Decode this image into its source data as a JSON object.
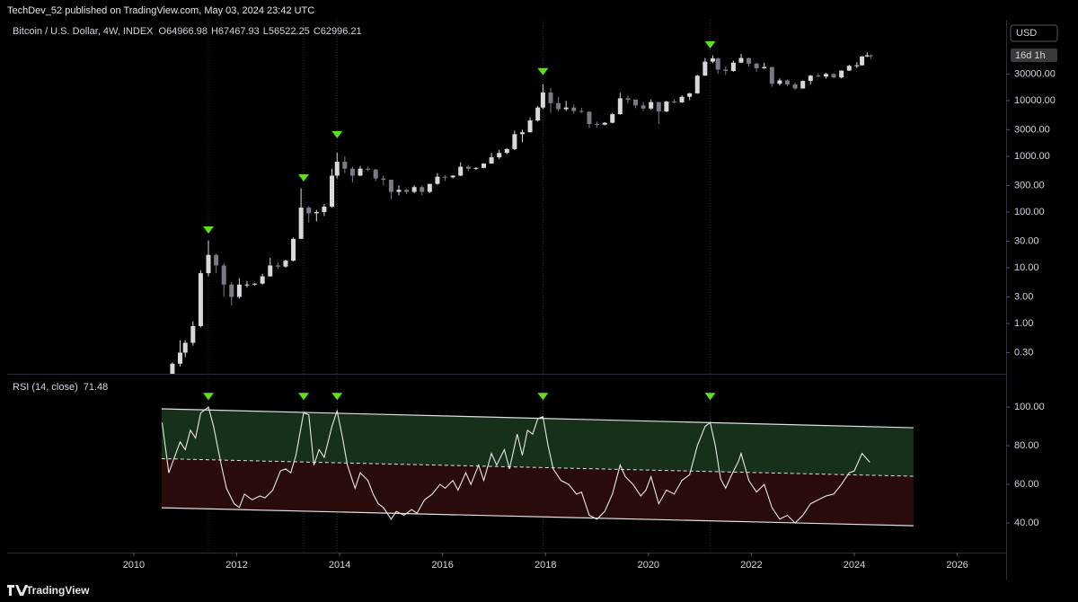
{
  "header": "TechDev_52 published on TradingView.com, May 03, 2024 23:42 UTC",
  "currency": "USD",
  "countdown": "16d 1h",
  "footer": "TradingView",
  "chart_data": [
    {
      "type": "candlestick",
      "title": "Bitcoin / U.S. Dollar, 4W, INDEX",
      "ohlc_keys": [
        "O",
        "H",
        "L",
        "C"
      ],
      "log": true,
      "up_color": "#d9d9d9",
      "down_color": "#787b86",
      "x": [
        2010.75,
        2010.9,
        2011.0,
        2011.15,
        2011.3,
        2011.45,
        2011.6,
        2011.75,
        2011.9,
        2012.05,
        2012.2,
        2012.35,
        2012.5,
        2012.65,
        2012.8,
        2012.95,
        2013.1,
        2013.25,
        2013.4,
        2013.55,
        2013.7,
        2013.85,
        2013.95,
        2014.1,
        2014.25,
        2014.4,
        2014.55,
        2014.7,
        2014.85,
        2015.0,
        2015.15,
        2015.3,
        2015.45,
        2015.6,
        2015.75,
        2015.9,
        2016.05,
        2016.2,
        2016.35,
        2016.5,
        2016.65,
        2016.8,
        2016.95,
        2017.1,
        2017.25,
        2017.4,
        2017.55,
        2017.7,
        2017.85,
        2017.95,
        2018.1,
        2018.25,
        2018.4,
        2018.55,
        2018.7,
        2018.85,
        2019.0,
        2019.15,
        2019.3,
        2019.45,
        2019.6,
        2019.75,
        2019.9,
        2020.05,
        2020.2,
        2020.35,
        2020.5,
        2020.65,
        2020.8,
        2020.95,
        2021.1,
        2021.25,
        2021.35,
        2021.5,
        2021.65,
        2021.8,
        2021.95,
        2022.1,
        2022.25,
        2022.4,
        2022.55,
        2022.7,
        2022.85,
        2023.0,
        2023.15,
        2023.3,
        2023.45,
        2023.6,
        2023.75,
        2023.9,
        2024.05,
        2024.15,
        2024.25,
        2024.32
      ],
      "open": [
        0.06,
        0.19,
        0.3,
        0.45,
        0.9,
        8,
        17,
        11,
        5,
        3,
        5,
        5,
        5.2,
        7,
        11,
        10.5,
        13.4,
        33,
        120,
        95,
        100,
        125,
        450,
        800,
        600,
        450,
        600,
        580,
        400,
        380,
        230,
        250,
        230,
        280,
        230,
        320,
        430,
        420,
        450,
        650,
        600,
        620,
        740,
        960,
        1150,
        1350,
        2500,
        2700,
        4400,
        7500,
        14000,
        9000,
        7000,
        7500,
        6500,
        6300,
        3800,
        3700,
        4000,
        5700,
        11000,
        10400,
        8200,
        7200,
        9400,
        6400,
        9600,
        9300,
        11700,
        13500,
        28000,
        50000,
        57000,
        36000,
        34000,
        48000,
        58000,
        46000,
        38000,
        40000,
        20000,
        23000,
        19500,
        16500,
        22500,
        28000,
        27000,
        30000,
        26000,
        34500,
        42000,
        43000,
        62000,
        64966.98
      ],
      "high": [
        0.2,
        0.5,
        0.5,
        1.1,
        9,
        31,
        18,
        12,
        5.5,
        6.5,
        5.8,
        5.3,
        7.8,
        15,
        12.5,
        14,
        35,
        266,
        130,
        110,
        140,
        600,
        1160,
        1000,
        650,
        670,
        650,
        590,
        450,
        380,
        300,
        260,
        300,
        300,
        320,
        500,
        460,
        460,
        780,
        700,
        640,
        750,
        1150,
        1300,
        1400,
        2900,
        3000,
        5000,
        8000,
        19800,
        17000,
        11700,
        9900,
        8500,
        7400,
        6500,
        4200,
        4100,
        6000,
        13800,
        12300,
        10600,
        9400,
        10500,
        9500,
        9900,
        10500,
        12400,
        13800,
        29000,
        58000,
        64800,
        59000,
        41000,
        52000,
        69000,
        59000,
        48000,
        48000,
        40000,
        25000,
        24000,
        21000,
        23000,
        28800,
        31000,
        31500,
        31000,
        35000,
        44000,
        49000,
        63000,
        73800,
        67467.93
      ],
      "low": [
        0.05,
        0.17,
        0.25,
        0.4,
        0.85,
        7,
        8,
        3,
        2.1,
        2.8,
        4.4,
        4.8,
        5,
        7,
        9.5,
        10,
        13,
        33,
        65,
        68,
        85,
        120,
        400,
        500,
        340,
        440,
        540,
        360,
        300,
        170,
        200,
        210,
        220,
        200,
        220,
        310,
        360,
        400,
        440,
        540,
        570,
        610,
        740,
        900,
        1100,
        1300,
        1800,
        2700,
        4200,
        7000,
        6000,
        6500,
        6500,
        5800,
        6000,
        3200,
        3300,
        3600,
        3900,
        5600,
        9000,
        7300,
        6500,
        6900,
        3800,
        6200,
        8900,
        9100,
        10200,
        13200,
        28000,
        47000,
        30000,
        29000,
        33000,
        47000,
        41000,
        33000,
        37000,
        17600,
        18800,
        18000,
        15500,
        16400,
        19600,
        26000,
        24800,
        25000,
        25000,
        34000,
        38500,
        42500,
        60000,
        56522.25
      ],
      "close": [
        0.19,
        0.3,
        0.45,
        0.9,
        8,
        17,
        11,
        5,
        3,
        5,
        5,
        5.2,
        7,
        11,
        10.5,
        13.4,
        33,
        120,
        95,
        100,
        125,
        450,
        800,
        600,
        450,
        600,
        580,
        400,
        380,
        230,
        250,
        230,
        280,
        230,
        320,
        430,
        420,
        450,
        650,
        600,
        620,
        740,
        960,
        1150,
        1350,
        2500,
        2700,
        4400,
        7500,
        14000,
        9000,
        7000,
        7500,
        6500,
        6300,
        3800,
        3700,
        4000,
        5700,
        11000,
        10400,
        8200,
        7200,
        9400,
        6400,
        9600,
        9300,
        11700,
        13500,
        28000,
        50000,
        57000,
        36000,
        34000,
        48000,
        58000,
        46000,
        38000,
        40000,
        20000,
        23000,
        19500,
        16500,
        22500,
        28000,
        27000,
        30000,
        26000,
        34500,
        42000,
        43000,
        62000,
        65000,
        62996.21
      ],
      "markers": {
        "color": "#5ee01f",
        "x": [
          2011.45,
          2013.3,
          2013.95,
          2017.95,
          2021.2
        ],
        "y": [
          47.6,
          409,
          2450,
          33000,
          100000
        ]
      },
      "xlim": [
        2007.54,
        2026.95
      ],
      "ylim": [
        0.13,
        282000
      ],
      "yticks": [
        {
          "value": 30000,
          "label": "30000.00"
        },
        {
          "value": 10000,
          "label": "10000.00"
        },
        {
          "value": 3000,
          "label": "3000.00"
        },
        {
          "value": 1000,
          "label": "1000.00"
        },
        {
          "value": 300,
          "label": "300.00"
        },
        {
          "value": 100,
          "label": "100.00"
        },
        {
          "value": 30,
          "label": "30.00"
        },
        {
          "value": 10,
          "label": "10.00"
        },
        {
          "value": 3,
          "label": "3.00"
        },
        {
          "value": 1,
          "label": "1.00"
        },
        {
          "value": 0.3,
          "label": "0.30"
        }
      ]
    },
    {
      "type": "line",
      "x": [
        2010.55,
        2010.68,
        2010.9,
        2011.0,
        2011.1,
        2011.2,
        2011.3,
        2011.45,
        2011.55,
        2011.7,
        2011.8,
        2011.95,
        2012.05,
        2012.15,
        2012.3,
        2012.45,
        2012.55,
        2012.7,
        2012.85,
        2012.95,
        2013.05,
        2013.15,
        2013.3,
        2013.4,
        2013.5,
        2013.6,
        2013.7,
        2013.85,
        2013.95,
        2014.05,
        2014.15,
        2014.3,
        2014.4,
        2014.55,
        2014.65,
        2014.75,
        2014.85,
        2015.0,
        2015.1,
        2015.25,
        2015.4,
        2015.5,
        2015.65,
        2015.8,
        2015.95,
        2016.05,
        2016.2,
        2016.3,
        2016.45,
        2016.55,
        2016.7,
        2016.8,
        2016.95,
        2017.05,
        2017.2,
        2017.3,
        2017.45,
        2017.55,
        2017.65,
        2017.75,
        2017.85,
        2017.95,
        2018.05,
        2018.15,
        2018.3,
        2018.45,
        2018.6,
        2018.7,
        2018.85,
        2019.0,
        2019.15,
        2019.3,
        2019.45,
        2019.55,
        2019.7,
        2019.85,
        2019.95,
        2020.05,
        2020.2,
        2020.35,
        2020.5,
        2020.65,
        2020.8,
        2020.95,
        2021.1,
        2021.2,
        2021.3,
        2021.4,
        2021.5,
        2021.6,
        2021.75,
        2021.8,
        2021.95,
        2022.1,
        2022.25,
        2022.4,
        2022.55,
        2022.7,
        2022.85,
        2023.0,
        2023.15,
        2023.3,
        2023.45,
        2023.6,
        2023.75,
        2023.9,
        2024.0,
        2024.15,
        2024.3
      ],
      "series": [
        {
          "name": "RSI (14, close)",
          "color": "#e8e8e8",
          "values": [
            92,
            66,
            82,
            78,
            88,
            84,
            97,
            100,
            90,
            70,
            58,
            50,
            48,
            55,
            52,
            54,
            53,
            57,
            67,
            68,
            66,
            75,
            97,
            96,
            70,
            78,
            74,
            90,
            98,
            85,
            70,
            58,
            66,
            62,
            55,
            50,
            48,
            42,
            46,
            44,
            47,
            45,
            52,
            55,
            60,
            58,
            62,
            57,
            66,
            60,
            70,
            62,
            76,
            70,
            78,
            68,
            86,
            75,
            88,
            86,
            94,
            95,
            80,
            68,
            62,
            60,
            55,
            56,
            44,
            42,
            46,
            55,
            70,
            64,
            60,
            54,
            57,
            64,
            50,
            57,
            55,
            62,
            65,
            80,
            90,
            92,
            80,
            63,
            58,
            64,
            72,
            76,
            62,
            56,
            60,
            48,
            42,
            44,
            40,
            44,
            50,
            52,
            54,
            55,
            60,
            66,
            67,
            76,
            71.48
          ]
        }
      ],
      "channel": {
        "line_color": "#e0e0e0",
        "upper_fill": "#17301a",
        "lower_fill": "#2a0b0b",
        "upper": {
          "x": [
            2010.54,
            2025.15
          ],
          "y": [
            99.1,
            89.3
          ]
        },
        "middle": {
          "x": [
            2010.54,
            2025.15
          ],
          "y": [
            73.3,
            64.2
          ]
        },
        "lower": {
          "x": [
            2010.54,
            2025.15
          ],
          "y": [
            47.9,
            38.6
          ]
        }
      },
      "markers": {
        "color": "#5ee01f",
        "x": [
          2011.45,
          2013.3,
          2013.95,
          2017.95,
          2021.2
        ],
        "y": [
          105.5,
          105.5,
          105.5,
          105.5,
          105.5
        ]
      },
      "xlim": [
        2007.54,
        2026.95
      ],
      "ylim": [
        24.7,
        116.3
      ],
      "xticks": [
        2010,
        2012,
        2014,
        2016,
        2018,
        2020,
        2022,
        2024,
        2026
      ],
      "yticks": [
        {
          "value": 100,
          "label": "100.00"
        },
        {
          "value": 80,
          "label": "80.00"
        },
        {
          "value": 60,
          "label": "60.00"
        },
        {
          "value": 40,
          "label": "40.00"
        }
      ]
    }
  ]
}
